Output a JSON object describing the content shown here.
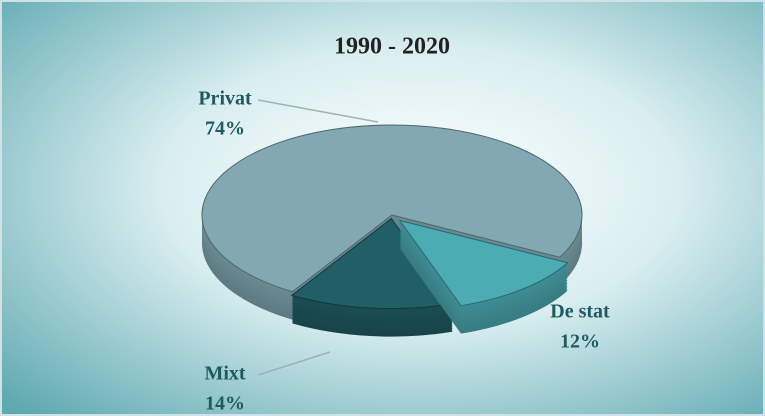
{
  "chart_data": {
    "type": "pie",
    "title": "1990 - 2020",
    "categories": [
      "Privat",
      "De stat",
      "Mixt"
    ],
    "values": [
      74,
      12,
      14
    ],
    "value_labels": [
      "74%",
      "12%",
      "14%"
    ],
    "colors": [
      "#82a9b3",
      "#4cacb4",
      "#205f66"
    ]
  }
}
